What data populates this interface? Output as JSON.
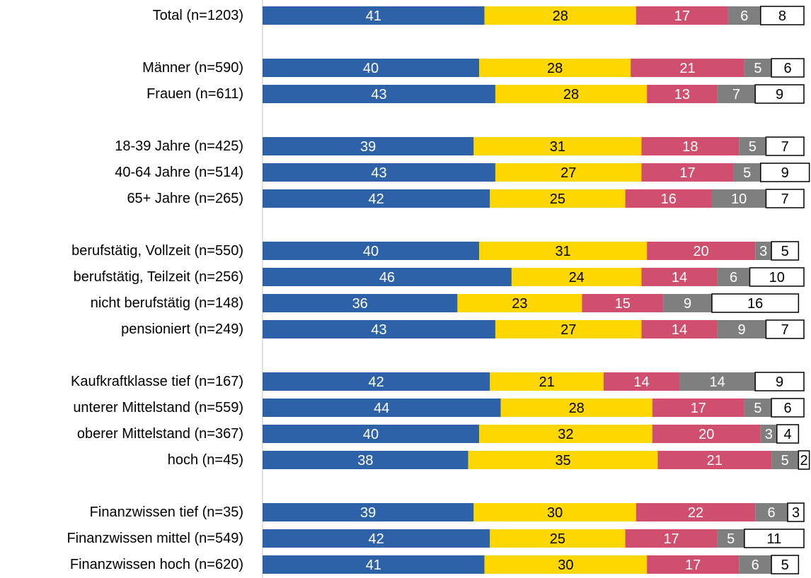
{
  "chart_data": {
    "type": "stacked-bar-horizontal",
    "categories": [
      "Total (n=1203)",
      null,
      "Männer (n=590)",
      "Frauen (n=611)",
      null,
      "18-39 Jahre (n=425)",
      "40-64 Jahre (n=514)",
      "65+ Jahre (n=265)",
      null,
      "berufstätig, Vollzeit (n=550)",
      "berufstätig, Teilzeit (n=256)",
      "nicht berufstätig (n=148)",
      "pensioniert (n=249)",
      null,
      "Kaufkraftklasse tief (n=167)",
      "unterer Mittelstand (n=559)",
      "oberer Mittelstand (n=367)",
      "hoch (n=45)",
      null,
      "Finanzwissen tief (n=35)",
      "Finanzwissen mittel (n=549)",
      "Finanzwissen hoch (n=620)"
    ],
    "series": [
      {
        "color": "#2e62a8",
        "values": [
          41,
          null,
          40,
          43,
          null,
          39,
          43,
          42,
          null,
          40,
          46,
          36,
          43,
          null,
          42,
          44,
          40,
          38,
          null,
          39,
          42,
          41
        ]
      },
      {
        "color": "#ffd700",
        "values": [
          28,
          null,
          28,
          28,
          null,
          31,
          27,
          25,
          null,
          31,
          24,
          23,
          27,
          null,
          21,
          28,
          32,
          35,
          null,
          30,
          25,
          30
        ]
      },
      {
        "color": "#d04e6e",
        "values": [
          17,
          null,
          21,
          13,
          null,
          18,
          17,
          16,
          null,
          20,
          14,
          15,
          14,
          null,
          14,
          17,
          20,
          21,
          null,
          22,
          17,
          17
        ]
      },
      {
        "color": "#7f7f7f",
        "values": [
          6,
          null,
          5,
          7,
          null,
          5,
          5,
          10,
          null,
          3,
          6,
          9,
          9,
          null,
          14,
          5,
          3,
          5,
          null,
          6,
          5,
          6
        ]
      },
      {
        "color": "#ffffff",
        "values": [
          8,
          null,
          6,
          9,
          null,
          7,
          9,
          7,
          null,
          5,
          10,
          16,
          7,
          null,
          9,
          6,
          4,
          2,
          null,
          3,
          11,
          5
        ]
      }
    ],
    "xlim": [
      0,
      100
    ]
  }
}
